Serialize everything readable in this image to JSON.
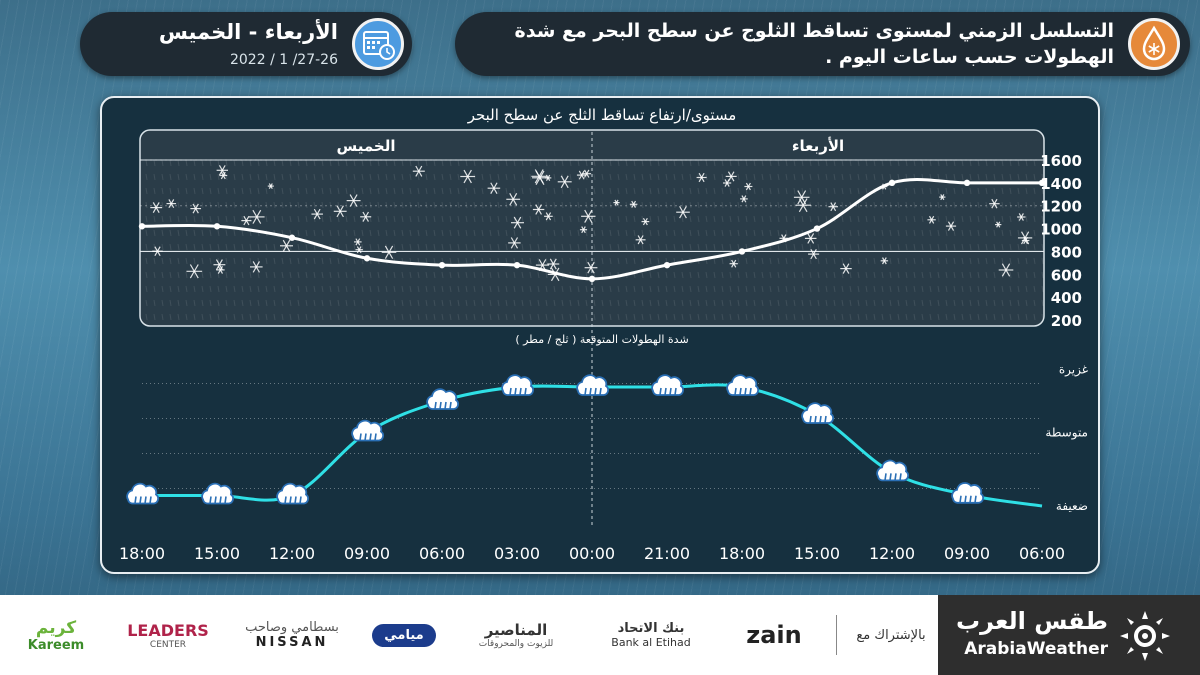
{
  "header": {
    "title_line1": "التسلسل الزمني لمستوى تساقط الثلوج عن سطح البحر مع شدة",
    "title_line2": "الهطولات حسب ساعات اليوم .",
    "days": "الأربعاء - الخميس",
    "date_range": "2022 / 1 /27-26",
    "icons": [
      "snow-drop-icon",
      "calendar-clock-icon"
    ]
  },
  "chart_data": [
    {
      "type": "line",
      "title": "مستوى/ارتفاع تساقط الثلج عن سطح البحر",
      "day_labels": [
        "الأربعاء",
        "الخميس"
      ],
      "x": [
        "06:00",
        "09:00",
        "12:00",
        "15:00",
        "18:00",
        "21:00",
        "00:00",
        "03:00",
        "06:00",
        "09:00",
        "12:00",
        "15:00",
        "18:00"
      ],
      "values": [
        1400,
        1400,
        1400,
        1000,
        800,
        680,
        560,
        680,
        680,
        740,
        920,
        1020,
        1020
      ],
      "yticks": [
        200,
        400,
        600,
        800,
        1000,
        1200,
        1400,
        1600
      ],
      "ylim": [
        200,
        1600
      ],
      "x_direction": "right-to-left",
      "colors": {
        "line": "#ffffff",
        "area": "#2a3c48"
      }
    },
    {
      "type": "line",
      "title": "شدة الهطولات المتوقعة ( ثلج / مطر )",
      "x": [
        "06:00",
        "09:00",
        "12:00",
        "15:00",
        "18:00",
        "21:00",
        "00:00",
        "03:00",
        "06:00",
        "09:00",
        "12:00",
        "15:00",
        "18:00"
      ],
      "values": [
        0.0,
        0.16,
        0.48,
        1.3,
        1.7,
        1.7,
        1.7,
        1.7,
        1.5,
        1.05,
        0.15,
        0.15,
        0.15
      ],
      "ytick_labels": [
        "ضعيفة",
        "متوسطة",
        "غزيرة"
      ],
      "ytick_positions": [
        0,
        1,
        2
      ],
      "ylim": [
        0,
        2
      ],
      "marker_icon": "cloud-rain-icon",
      "colors": {
        "line": "#2fe0e6",
        "marker_fill": "#ffffff",
        "marker_stroke": "#2a6fb5"
      }
    }
  ],
  "footer": {
    "brand_ar": "طقس العرب",
    "brand_en": "ArabiaWeather",
    "sponsored_label": "بالإشتراك مع",
    "sponsors": [
      {
        "main": "zain",
        "sub": ""
      },
      {
        "main": "بنك الاتحاد",
        "sub": "Bank al Etihad"
      },
      {
        "main": "المناصير",
        "sub": "للزيوت والمحروقات"
      },
      {
        "main": "ميامي",
        "sub": ""
      },
      {
        "main": "بسطامي وصاحب",
        "sub": "NISSAN"
      },
      {
        "main": "LEADERS",
        "sub": "CENTER"
      },
      {
        "main": "كريم",
        "sub": "Kareem"
      }
    ]
  }
}
